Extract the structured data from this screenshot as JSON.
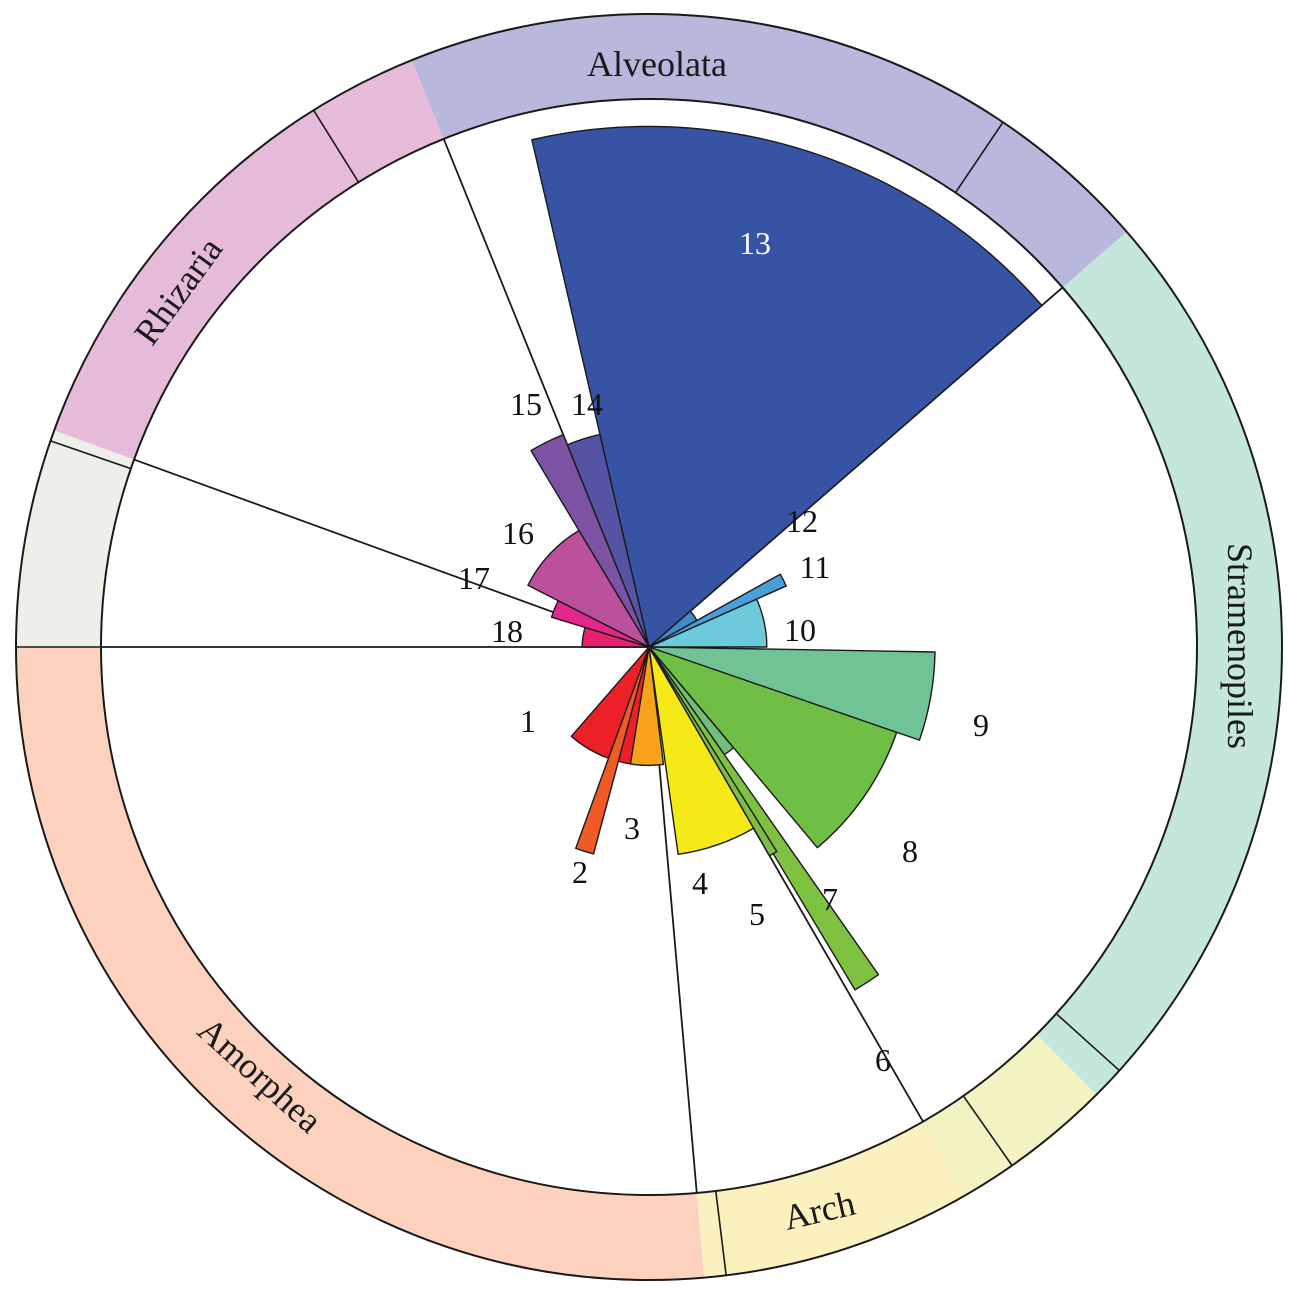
{
  "chart_data": {
    "type": "polar-area",
    "sector_unit": "degrees clockwise from 3 o'clock",
    "value_scale_max": 100,
    "slices": [
      {
        "id": "1",
        "label": "1",
        "start": 90,
        "end": 131,
        "value": 21.6,
        "color": "#ec2128"
      },
      {
        "id": "2",
        "label": "2",
        "start": 105,
        "end": 110,
        "value": 39.1,
        "color": "#f05a24"
      },
      {
        "id": "3",
        "label": "3",
        "start": 83,
        "end": 99,
        "value": 21.6,
        "color": "#f8a21b"
      },
      {
        "id": "4",
        "label": "4",
        "start": 60,
        "end": 82,
        "value": 38.2,
        "color": "#f5ea17"
      },
      {
        "id": "5",
        "label": "5",
        "start": 58,
        "end": 60,
        "value": 44.0,
        "color": "#7fbd45"
      },
      {
        "id": "6",
        "label": "6",
        "start": 55,
        "end": 59,
        "value": 73.0,
        "color": "#7fc242"
      },
      {
        "id": "7",
        "label": "7",
        "start": 50,
        "end": 55,
        "value": 24.0,
        "color": "#71c07a"
      },
      {
        "id": "8",
        "label": "8",
        "start": 10,
        "end": 50,
        "value": 47.8,
        "color": "#70bf45"
      },
      {
        "id": "9",
        "label": "9",
        "start": 1,
        "end": 19,
        "value": 52.2,
        "color": "#6fc395"
      },
      {
        "id": "10",
        "label": "10",
        "start": -24,
        "end": 0,
        "value": 21.5,
        "color": "#6ccadb"
      },
      {
        "id": "11",
        "label": "11",
        "start": -29,
        "end": -24,
        "value": 27.4,
        "color": "#4a9fdb"
      },
      {
        "id": "12",
        "label": "12",
        "start": -41,
        "end": -29,
        "value": 10.0,
        "color": "#4189cb"
      },
      {
        "id": "13",
        "label": "13",
        "start": -103,
        "end": -41,
        "value": 95.0,
        "color": "#3753a4"
      },
      {
        "id": "14",
        "label": "14",
        "start": -112,
        "end": -103,
        "value": 39.8,
        "color": "#5453a4"
      },
      {
        "id": "15",
        "label": "15",
        "start": -121,
        "end": -112,
        "value": 41.8,
        "color": "#7d52a3"
      },
      {
        "id": "16",
        "label": "16",
        "start": -153,
        "end": -121,
        "value": 24.8,
        "color": "#bb509d"
      },
      {
        "id": "17",
        "label": "17",
        "start": -163,
        "end": -153,
        "value": 18.6,
        "color": "#e2288a"
      },
      {
        "id": "18",
        "label": "18",
        "start": -180,
        "end": -163,
        "value": 12.2,
        "color": "#e8206f"
      }
    ],
    "groups": [
      {
        "id": "amorphea",
        "label": "Amorphea",
        "start": 85,
        "end": 180,
        "color": "#fcd2bf"
      },
      {
        "id": "arch",
        "label": "Arch",
        "start": 60,
        "end": 85,
        "color": "#fbf1bf"
      },
      {
        "id": "unlabeled-1",
        "label": "",
        "start": 45,
        "end": 60,
        "color": "#f2f2c2"
      },
      {
        "id": "stramenopiles",
        "label": "Stramenopiles",
        "start": -41,
        "end": 45,
        "color": "#c5e6dc"
      },
      {
        "id": "alveolata",
        "label": "Alveolata",
        "start": -112,
        "end": -41,
        "color": "#b8b7dc"
      },
      {
        "id": "rhizaria",
        "label": "Rhizaria",
        "start": -160,
        "end": -112,
        "color": "#e5bbd9"
      },
      {
        "id": "unlabeled-2",
        "label": "",
        "start": -180,
        "end": -160,
        "color": "#efefea"
      }
    ],
    "divider_angles": [
      180,
      85,
      60,
      -41,
      -112,
      -160
    ],
    "group_boundary_angles": [
      -161,
      -122,
      -56,
      42,
      55,
      83,
      180
    ]
  }
}
